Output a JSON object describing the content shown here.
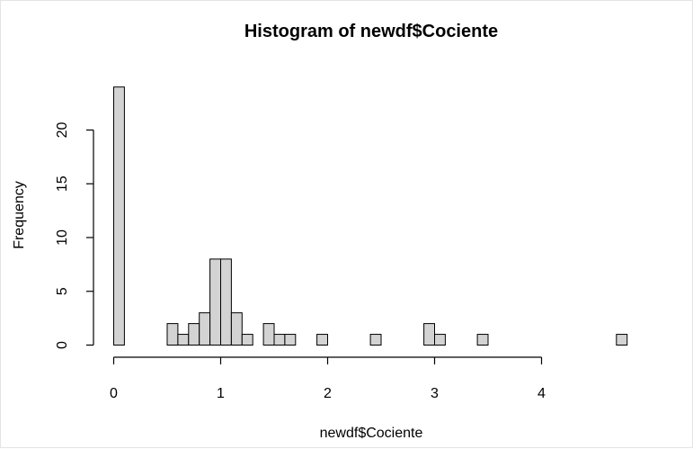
{
  "chart_data": {
    "type": "bar",
    "title": "Histogram of newdf$Cociente",
    "xlabel": "newdf$Cociente",
    "ylabel": "Frequency",
    "bin_width": 0.1,
    "bin_starts": [
      0.0,
      0.1,
      0.2,
      0.3,
      0.4,
      0.5,
      0.6,
      0.7,
      0.8,
      0.9,
      1.0,
      1.1,
      1.2,
      1.3,
      1.4,
      1.5,
      1.6,
      1.7,
      1.8,
      1.9,
      2.0,
      2.1,
      2.2,
      2.3,
      2.4,
      2.5,
      2.6,
      2.7,
      2.8,
      2.9,
      3.0,
      3.1,
      3.2,
      3.3,
      3.4,
      3.5,
      3.6,
      3.7,
      3.8,
      3.9,
      4.0,
      4.1,
      4.2,
      4.3,
      4.4,
      4.5,
      4.6,
      4.7
    ],
    "values": [
      24,
      0,
      0,
      0,
      0,
      2,
      1,
      2,
      3,
      8,
      8,
      3,
      1,
      0,
      2,
      1,
      1,
      0,
      0,
      1,
      0,
      0,
      0,
      0,
      1,
      0,
      0,
      0,
      0,
      2,
      1,
      0,
      0,
      0,
      1,
      0,
      0,
      0,
      0,
      0,
      0,
      0,
      0,
      0,
      0,
      0,
      0,
      1
    ],
    "xlim": [
      0,
      4.8
    ],
    "ylim": [
      0,
      24
    ],
    "x_ticks": [
      0,
      1,
      2,
      3,
      4
    ],
    "y_ticks": [
      0,
      5,
      10,
      15,
      20
    ],
    "x_tick_labels": [
      "0",
      "1",
      "2",
      "3",
      "4"
    ],
    "y_tick_labels": [
      "0",
      "5",
      "10",
      "15",
      "20"
    ],
    "grid": false,
    "colors": {
      "bar_fill": "#d3d3d3",
      "bar_stroke": "#000000"
    }
  }
}
